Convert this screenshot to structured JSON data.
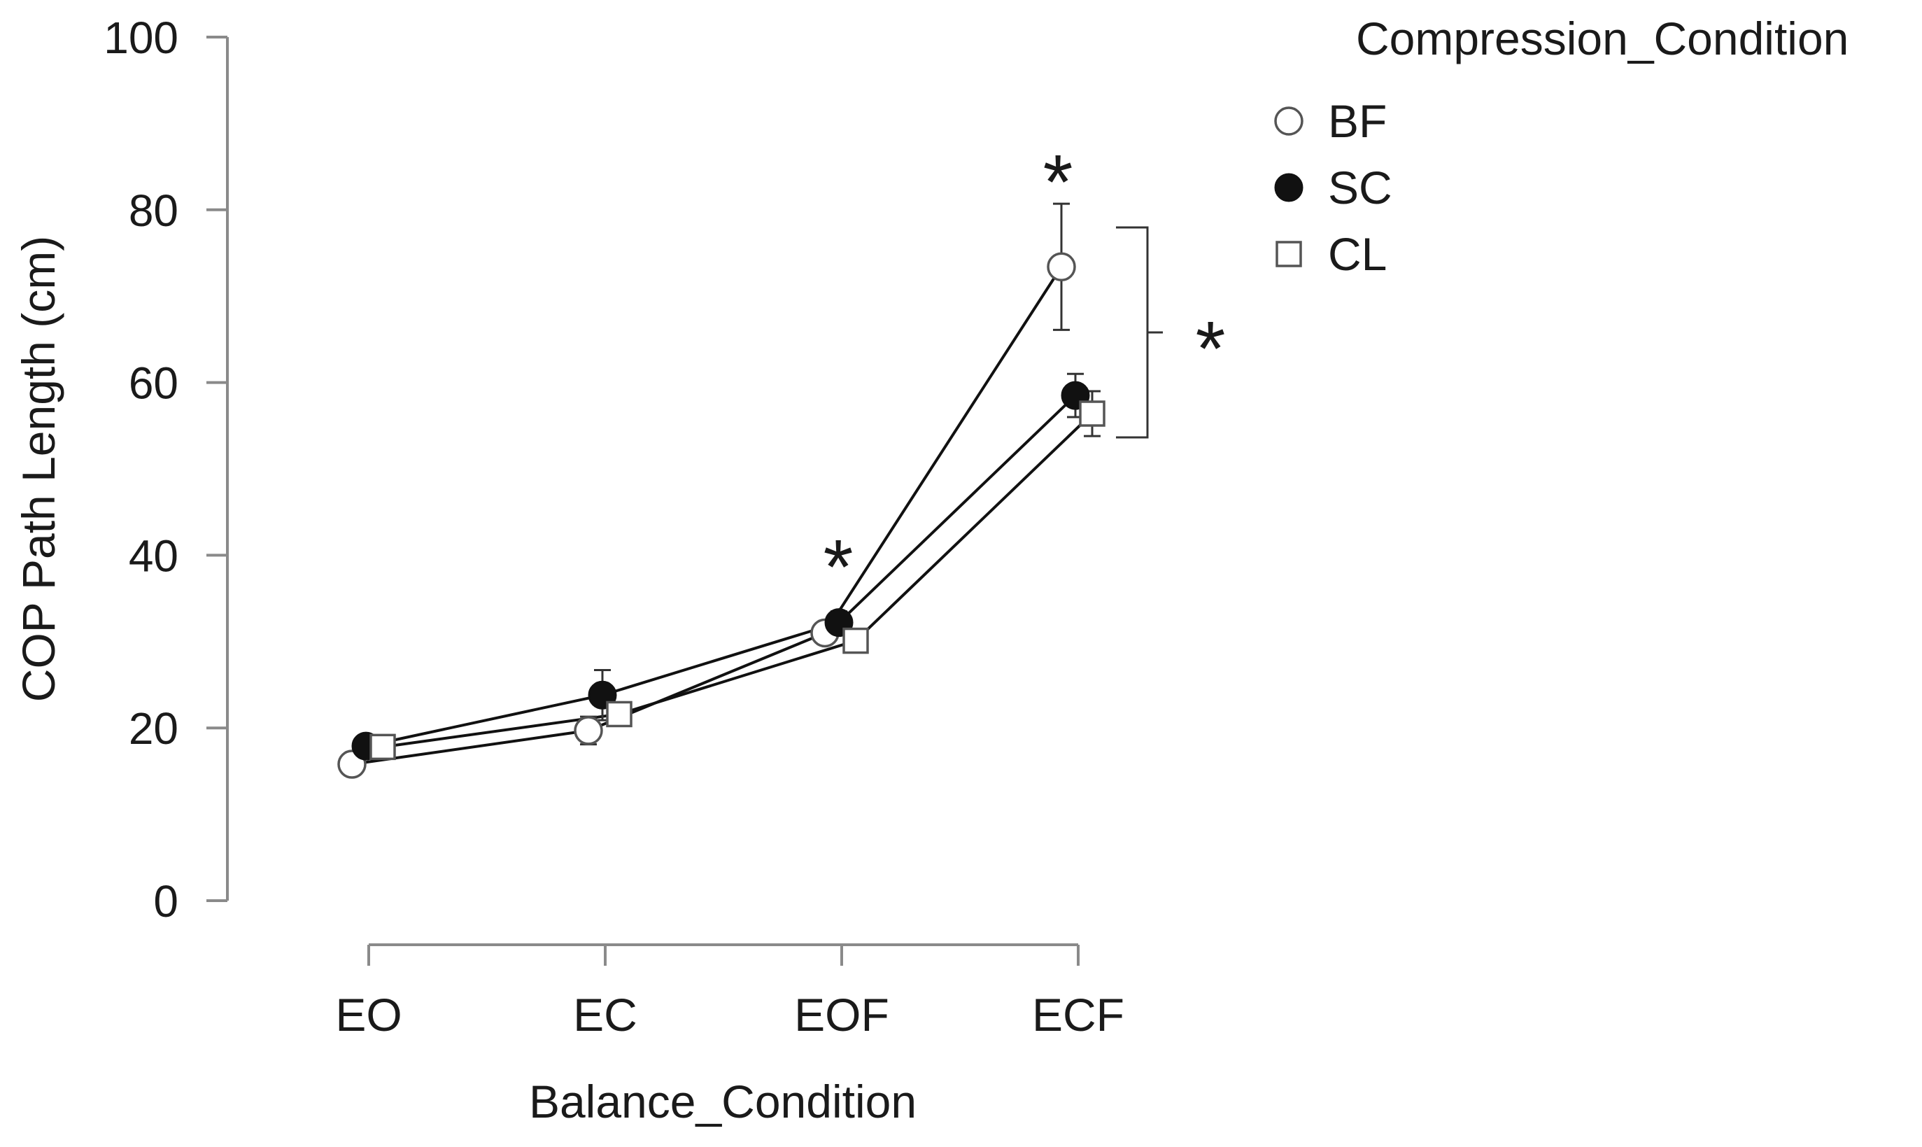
{
  "chart_data": {
    "type": "line",
    "title": "",
    "xlabel": "Balance_Condition",
    "ylabel": "COP Path Length (cm)",
    "ylim": [
      0,
      100
    ],
    "yticks": [
      0,
      20,
      40,
      60,
      80,
      100
    ],
    "categories": [
      "EO",
      "EC",
      "EOF",
      "ECF"
    ],
    "legend_title": "Compression_Condition",
    "legend_position": "top-right",
    "series": [
      {
        "name": "BF",
        "marker": "open-circle",
        "values": [
          15.8,
          19.7,
          31.0,
          73.4
        ],
        "error": [
          1.0,
          1.6,
          1.2,
          7.3
        ]
      },
      {
        "name": "SC",
        "marker": "filled-circle",
        "values": [
          17.9,
          23.8,
          32.2,
          58.5
        ],
        "error": [
          0.8,
          2.9,
          1.3,
          2.5
        ]
      },
      {
        "name": "CL",
        "marker": "open-square",
        "values": [
          17.8,
          21.6,
          30.1,
          56.4
        ],
        "error": [
          0.6,
          0.9,
          0.7,
          2.6
        ]
      }
    ],
    "annotations": {
      "eof_star": "*",
      "ecf_star": "*",
      "bracket_star": "*"
    }
  }
}
